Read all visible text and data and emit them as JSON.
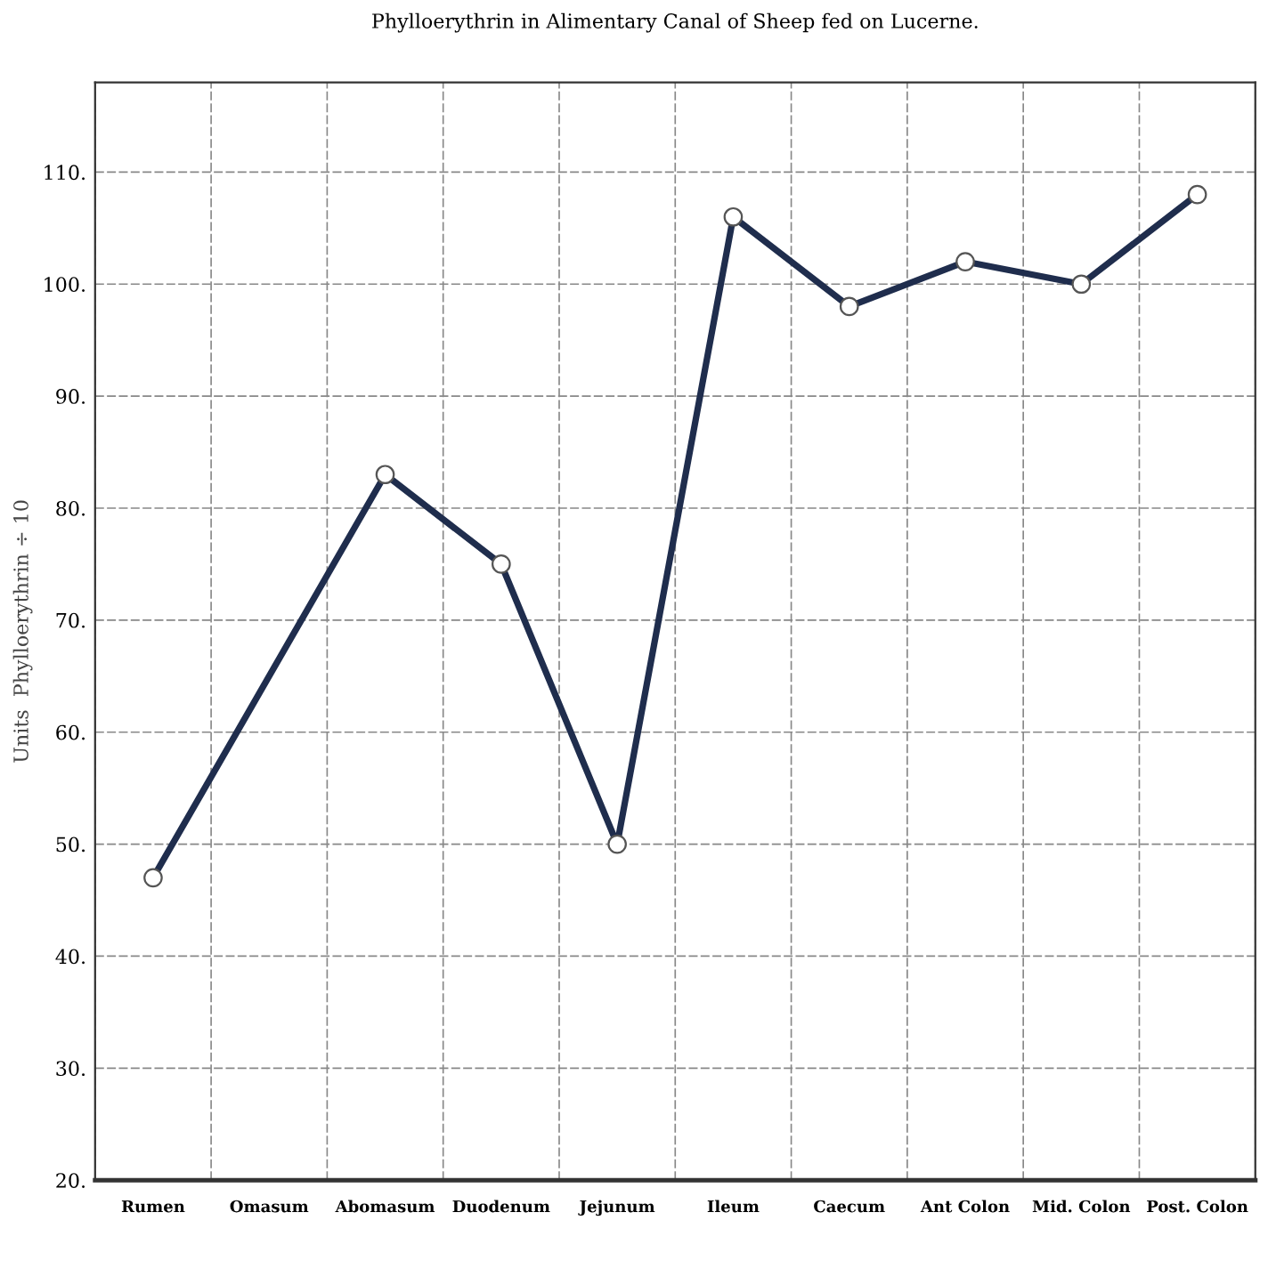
{
  "chart_data": {
    "type": "line",
    "title": "Phylloerythrin in Alimentary Canal of Sheep fed on Lucerne.",
    "ylabel": "Units  Phylloerythrin ÷ 10",
    "categories": [
      "Rumen",
      "Omasum",
      "Abomasum",
      "Duodenum",
      "Jejunum",
      "Ileum",
      "Caecum",
      "Ant Colon",
      "Mid. Colon",
      "Post. Colon"
    ],
    "series": [
      {
        "color": "#1f2d4d",
        "values": [
          47,
          null,
          83,
          75,
          50,
          106,
          98,
          102,
          100,
          108
        ]
      }
    ],
    "ylim": [
      20,
      118
    ],
    "yticks": [
      {
        "value": 20,
        "label": "20."
      },
      {
        "value": 30,
        "label": "30."
      },
      {
        "value": 40,
        "label": "40."
      },
      {
        "value": 50,
        "label": "50."
      },
      {
        "value": 60,
        "label": "60."
      },
      {
        "value": 70,
        "label": "70."
      },
      {
        "value": 80,
        "label": "80."
      },
      {
        "value": 90,
        "label": "90."
      },
      {
        "value": 100,
        "label": "100."
      },
      {
        "value": 110,
        "label": "110."
      }
    ],
    "grid": true,
    "marker": "circle",
    "line_style": "solid"
  }
}
